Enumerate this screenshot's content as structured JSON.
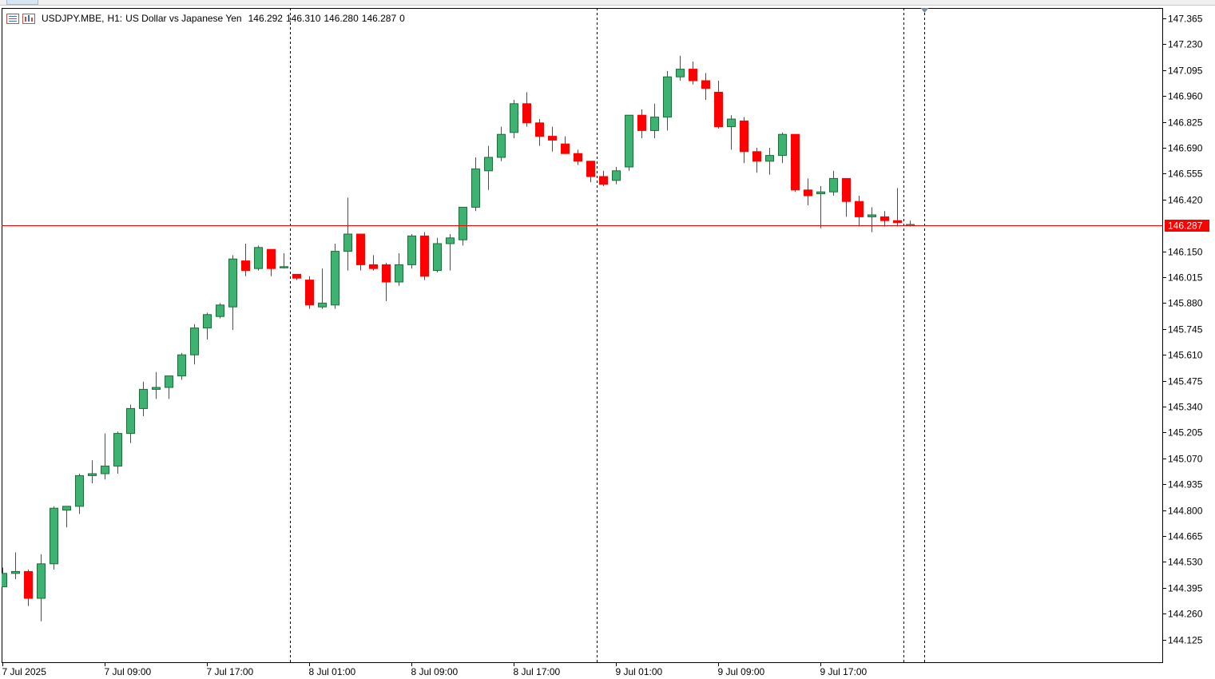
{
  "header": {
    "symbol": "USDJPY.MBE,",
    "timeframe": "H1:",
    "description": "US Dollar vs Japanese Yen",
    "open": "146.292",
    "high": "146.310",
    "low": "146.280",
    "close": "146.287",
    "volume": "0",
    "icons": [
      "chart-list-icon",
      "chart-properties-icon"
    ]
  },
  "colors": {
    "bull": "#3cb371",
    "bear": "#ff0000",
    "outline": "#1a1a1a",
    "price_line": "#ff0000",
    "price_tag_bg": "#ff0000",
    "price_tag_text": "#ffffff",
    "separator": "#000000"
  },
  "chart_data": {
    "type": "candlestick",
    "symbol": "USDJPY.MBE",
    "timeframe": "H1",
    "current_price": 146.287,
    "current_price_label": "146.287",
    "ylim": [
      144.05,
      147.42
    ],
    "y_ticks": [
      "147.365",
      "147.230",
      "147.095",
      "146.960",
      "146.825",
      "146.690",
      "146.555",
      "146.420",
      "146.150",
      "146.015",
      "145.880",
      "145.745",
      "145.610",
      "145.475",
      "145.340",
      "145.205",
      "145.070",
      "144.935",
      "144.800",
      "144.665",
      "144.530",
      "144.395",
      "144.260",
      "144.125"
    ],
    "x_ticks": [
      "7 Jul 2025",
      "7 Jul 09:00",
      "7 Jul 17:00",
      "8 Jul 01:00",
      "8 Jul 09:00",
      "8 Jul 17:00",
      "9 Jul 01:00",
      "9 Jul 09:00",
      "9 Jul 17:00"
    ],
    "day_separators_after_bar": [
      22,
      46,
      70
    ],
    "candles": [
      {
        "o": 144.4,
        "h": 144.5,
        "l": 144.4,
        "c": 144.47
      },
      {
        "o": 144.47,
        "h": 144.58,
        "l": 144.44,
        "c": 144.48
      },
      {
        "o": 144.48,
        "h": 144.49,
        "l": 144.3,
        "c": 144.34
      },
      {
        "o": 144.34,
        "h": 144.57,
        "l": 144.22,
        "c": 144.52
      },
      {
        "o": 144.52,
        "h": 144.82,
        "l": 144.49,
        "c": 144.81
      },
      {
        "o": 144.8,
        "h": 144.82,
        "l": 144.71,
        "c": 144.82
      },
      {
        "o": 144.82,
        "h": 144.99,
        "l": 144.78,
        "c": 144.98
      },
      {
        "o": 144.98,
        "h": 145.06,
        "l": 144.94,
        "c": 144.99
      },
      {
        "o": 144.99,
        "h": 145.2,
        "l": 144.96,
        "c": 145.03
      },
      {
        "o": 145.03,
        "h": 145.21,
        "l": 144.99,
        "c": 145.2
      },
      {
        "o": 145.2,
        "h": 145.35,
        "l": 145.15,
        "c": 145.33
      },
      {
        "o": 145.33,
        "h": 145.47,
        "l": 145.29,
        "c": 145.43
      },
      {
        "o": 145.43,
        "h": 145.52,
        "l": 145.38,
        "c": 145.44
      },
      {
        "o": 145.44,
        "h": 145.5,
        "l": 145.38,
        "c": 145.5
      },
      {
        "o": 145.5,
        "h": 145.62,
        "l": 145.48,
        "c": 145.61
      },
      {
        "o": 145.61,
        "h": 145.77,
        "l": 145.56,
        "c": 145.75
      },
      {
        "o": 145.75,
        "h": 145.83,
        "l": 145.69,
        "c": 145.82
      },
      {
        "o": 145.81,
        "h": 145.88,
        "l": 145.8,
        "c": 145.87
      },
      {
        "o": 145.86,
        "h": 146.13,
        "l": 145.74,
        "c": 146.11
      },
      {
        "o": 146.1,
        "h": 146.19,
        "l": 146.02,
        "c": 146.05
      },
      {
        "o": 146.06,
        "h": 146.18,
        "l": 146.05,
        "c": 146.17
      },
      {
        "o": 146.16,
        "h": 146.16,
        "l": 146.02,
        "c": 146.06
      },
      {
        "o": 146.07,
        "h": 146.14,
        "l": 146.06,
        "c": 146.07
      },
      {
        "o": 146.03,
        "h": 146.03,
        "l": 146.0,
        "c": 146.01
      },
      {
        "o": 146.0,
        "h": 146.02,
        "l": 145.85,
        "c": 145.87
      },
      {
        "o": 145.86,
        "h": 146.06,
        "l": 145.85,
        "c": 145.88
      },
      {
        "o": 145.87,
        "h": 146.19,
        "l": 145.85,
        "c": 146.15
      },
      {
        "o": 146.15,
        "h": 146.43,
        "l": 146.05,
        "c": 146.24
      },
      {
        "o": 146.24,
        "h": 146.24,
        "l": 146.05,
        "c": 146.08
      },
      {
        "o": 146.08,
        "h": 146.13,
        "l": 146.05,
        "c": 146.06
      },
      {
        "o": 146.08,
        "h": 146.09,
        "l": 145.89,
        "c": 145.99
      },
      {
        "o": 145.99,
        "h": 146.14,
        "l": 145.97,
        "c": 146.08
      },
      {
        "o": 146.08,
        "h": 146.24,
        "l": 146.06,
        "c": 146.23
      },
      {
        "o": 146.23,
        "h": 146.25,
        "l": 146.0,
        "c": 146.02
      },
      {
        "o": 146.05,
        "h": 146.22,
        "l": 146.04,
        "c": 146.19
      },
      {
        "o": 146.19,
        "h": 146.24,
        "l": 146.05,
        "c": 146.22
      },
      {
        "o": 146.21,
        "h": 146.38,
        "l": 146.18,
        "c": 146.38
      },
      {
        "o": 146.38,
        "h": 146.64,
        "l": 146.36,
        "c": 146.58
      },
      {
        "o": 146.57,
        "h": 146.7,
        "l": 146.47,
        "c": 146.64
      },
      {
        "o": 146.64,
        "h": 146.8,
        "l": 146.62,
        "c": 146.76
      },
      {
        "o": 146.77,
        "h": 146.94,
        "l": 146.74,
        "c": 146.92
      },
      {
        "o": 146.92,
        "h": 146.98,
        "l": 146.8,
        "c": 146.82
      },
      {
        "o": 146.82,
        "h": 146.84,
        "l": 146.7,
        "c": 146.75
      },
      {
        "o": 146.75,
        "h": 146.8,
        "l": 146.67,
        "c": 146.73
      },
      {
        "o": 146.71,
        "h": 146.75,
        "l": 146.66,
        "c": 146.66
      },
      {
        "o": 146.66,
        "h": 146.68,
        "l": 146.6,
        "c": 146.62
      },
      {
        "o": 146.62,
        "h": 146.62,
        "l": 146.51,
        "c": 146.54
      },
      {
        "o": 146.54,
        "h": 146.57,
        "l": 146.49,
        "c": 146.5
      },
      {
        "o": 146.52,
        "h": 146.59,
        "l": 146.5,
        "c": 146.57
      },
      {
        "o": 146.59,
        "h": 146.86,
        "l": 146.57,
        "c": 146.86
      },
      {
        "o": 146.86,
        "h": 146.89,
        "l": 146.74,
        "c": 146.78
      },
      {
        "o": 146.78,
        "h": 146.92,
        "l": 146.74,
        "c": 146.85
      },
      {
        "o": 146.85,
        "h": 147.09,
        "l": 146.78,
        "c": 147.06
      },
      {
        "o": 147.06,
        "h": 147.17,
        "l": 147.04,
        "c": 147.1
      },
      {
        "o": 147.1,
        "h": 147.14,
        "l": 147.02,
        "c": 147.04
      },
      {
        "o": 147.04,
        "h": 147.08,
        "l": 146.94,
        "c": 147.0
      },
      {
        "o": 146.98,
        "h": 147.04,
        "l": 146.79,
        "c": 146.8
      },
      {
        "o": 146.8,
        "h": 146.86,
        "l": 146.68,
        "c": 146.84
      },
      {
        "o": 146.83,
        "h": 146.85,
        "l": 146.61,
        "c": 146.67
      },
      {
        "o": 146.67,
        "h": 146.69,
        "l": 146.56,
        "c": 146.62
      },
      {
        "o": 146.62,
        "h": 146.69,
        "l": 146.55,
        "c": 146.65
      },
      {
        "o": 146.65,
        "h": 146.77,
        "l": 146.61,
        "c": 146.76
      },
      {
        "o": 146.76,
        "h": 146.76,
        "l": 146.46,
        "c": 146.47
      },
      {
        "o": 146.47,
        "h": 146.53,
        "l": 146.39,
        "c": 146.44
      },
      {
        "o": 146.45,
        "h": 146.49,
        "l": 146.27,
        "c": 146.46
      },
      {
        "o": 146.46,
        "h": 146.57,
        "l": 146.44,
        "c": 146.53
      },
      {
        "o": 146.53,
        "h": 146.53,
        "l": 146.33,
        "c": 146.41
      },
      {
        "o": 146.41,
        "h": 146.44,
        "l": 146.28,
        "c": 146.33
      },
      {
        "o": 146.33,
        "h": 146.38,
        "l": 146.25,
        "c": 146.34
      },
      {
        "o": 146.33,
        "h": 146.36,
        "l": 146.28,
        "c": 146.31
      },
      {
        "o": 146.31,
        "h": 146.48,
        "l": 146.28,
        "c": 146.3
      },
      {
        "o": 146.29,
        "h": 146.31,
        "l": 146.28,
        "c": 146.29
      }
    ]
  }
}
